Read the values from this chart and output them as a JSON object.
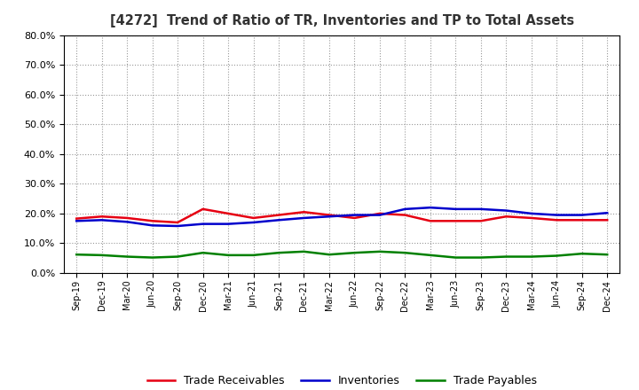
{
  "title": "[4272]  Trend of Ratio of TR, Inventories and TP to Total Assets",
  "x_labels": [
    "Sep-19",
    "Dec-19",
    "Mar-20",
    "Jun-20",
    "Sep-20",
    "Dec-20",
    "Mar-21",
    "Jun-21",
    "Sep-21",
    "Dec-21",
    "Mar-22",
    "Jun-22",
    "Sep-22",
    "Dec-22",
    "Mar-23",
    "Jun-23",
    "Sep-23",
    "Dec-23",
    "Mar-24",
    "Jun-24",
    "Sep-24",
    "Dec-24"
  ],
  "trade_receivables": [
    0.183,
    0.19,
    0.185,
    0.175,
    0.17,
    0.215,
    0.2,
    0.185,
    0.195,
    0.205,
    0.195,
    0.185,
    0.2,
    0.195,
    0.175,
    0.175,
    0.175,
    0.19,
    0.185,
    0.178,
    0.178,
    0.178
  ],
  "inventories": [
    0.175,
    0.178,
    0.172,
    0.16,
    0.158,
    0.165,
    0.165,
    0.17,
    0.178,
    0.185,
    0.19,
    0.195,
    0.195,
    0.215,
    0.22,
    0.215,
    0.215,
    0.21,
    0.2,
    0.195,
    0.195,
    0.202
  ],
  "trade_payables": [
    0.062,
    0.06,
    0.055,
    0.052,
    0.055,
    0.068,
    0.06,
    0.06,
    0.068,
    0.072,
    0.062,
    0.068,
    0.072,
    0.068,
    0.06,
    0.052,
    0.052,
    0.055,
    0.055,
    0.058,
    0.065,
    0.062
  ],
  "tr_color": "#e60012",
  "inv_color": "#0000cc",
  "tp_color": "#008000",
  "ylim": [
    0.0,
    0.8
  ],
  "yticks": [
    0.0,
    0.1,
    0.2,
    0.3,
    0.4,
    0.5,
    0.6,
    0.7,
    0.8
  ],
  "background_color": "#ffffff",
  "grid_color": "#999999",
  "line_width": 1.8,
  "legend_labels": [
    "Trade Receivables",
    "Inventories",
    "Trade Payables"
  ]
}
